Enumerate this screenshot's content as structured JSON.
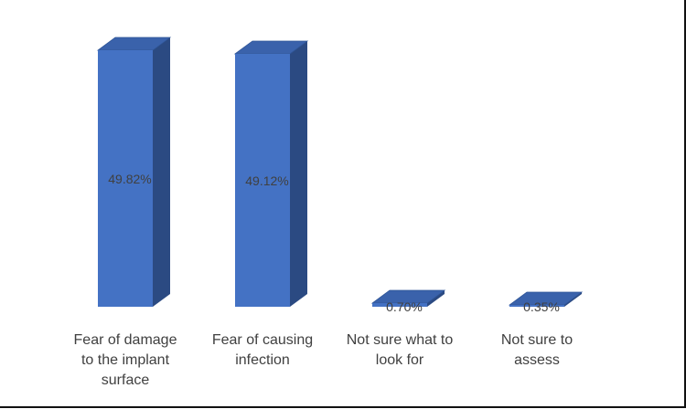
{
  "chart_data": {
    "type": "bar",
    "style": "3d-column",
    "categories": [
      [
        "Fear of damage",
        "to the implant",
        "surface"
      ],
      [
        "Fear of causing",
        "infection"
      ],
      [
        "Not sure what to",
        "look for"
      ],
      [
        "Not sure to",
        "assess"
      ]
    ],
    "values": [
      49.82,
      49.12,
      0.7,
      0.35
    ],
    "data_labels": [
      "49.82%",
      "49.12%",
      "0.70%",
      "0.35%"
    ],
    "ylim": [
      0,
      50
    ],
    "grid": false,
    "legend": "none",
    "colors": {
      "front": "#4472c4",
      "side": "#2b4a82",
      "top": "#3a62ab",
      "edge": "#2f5597",
      "text": "#404040"
    }
  }
}
